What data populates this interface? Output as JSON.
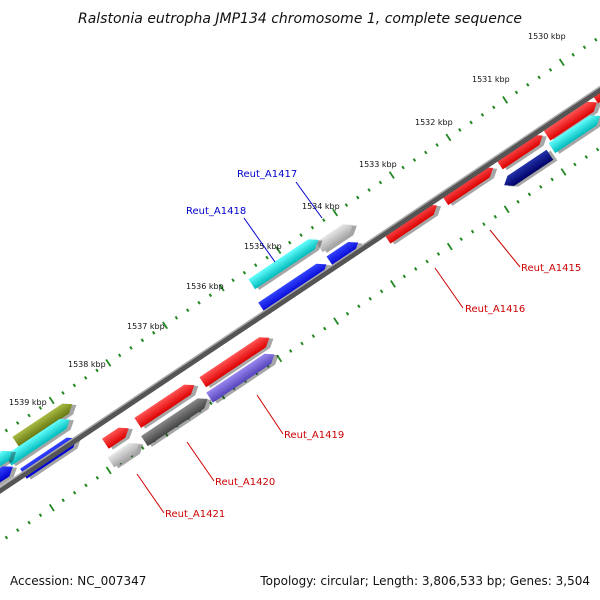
{
  "title": "Ralstonia eutropha JMP134 chromosome 1, complete sequence",
  "ticks": [
    "1530 kbp",
    "1531 kbp",
    "1532 kbp",
    "1533 kbp",
    "1534 kbp",
    "1535 kbp",
    "1536 kbp",
    "1537 kbp",
    "1538 kbp",
    "1539 kbp"
  ],
  "gene_labels": [
    {
      "name": "Reut_A1415",
      "color": "#cc0000"
    },
    {
      "name": "Reut_A1416",
      "color": "#cc0000"
    },
    {
      "name": "Reut_A1417",
      "color": "#0000cc"
    },
    {
      "name": "Reut_A1418",
      "color": "#0000cc"
    },
    {
      "name": "Reut_A1419",
      "color": "#cc0000"
    },
    {
      "name": "Reut_A1420",
      "color": "#cc0000"
    },
    {
      "name": "Reut_A1421",
      "color": "#cc0000"
    }
  ],
  "colors": {
    "red": "#ff0000",
    "blue": "#0000ee",
    "cyan": "#00dddd",
    "gray": "#bbbbbb",
    "darkgray": "#555555",
    "navy": "#000088",
    "violet": "#7766dd",
    "olive": "#889922",
    "backbone": "#777777",
    "ticks": "#228822"
  },
  "footer": {
    "accession": "Accession: NC_007347",
    "topology": "Topology: circular; Length: 3,806,533 bp; Genes: 3,504"
  }
}
